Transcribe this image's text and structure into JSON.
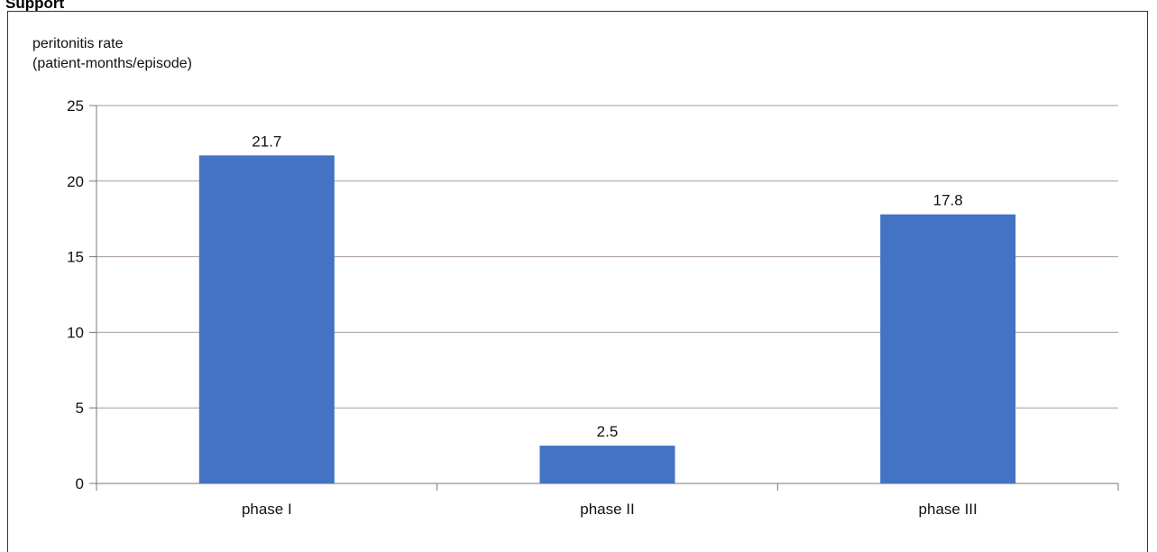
{
  "header": {
    "top_text": "Support"
  },
  "chart_data": {
    "type": "bar",
    "ylabel_lines": [
      "peritonitis rate",
      "(patient-months/episode)"
    ],
    "categories": [
      "phase I",
      "phase II",
      "phase III"
    ],
    "values": [
      21.7,
      2.5,
      17.8
    ],
    "data_labels": [
      "21.7",
      "2.5",
      "17.8"
    ],
    "ylim": [
      0,
      25
    ],
    "yticks": [
      0,
      5,
      10,
      15,
      20,
      25
    ],
    "grid": true,
    "bar_color": "#4472c4",
    "grid_color": "#a89a96"
  }
}
